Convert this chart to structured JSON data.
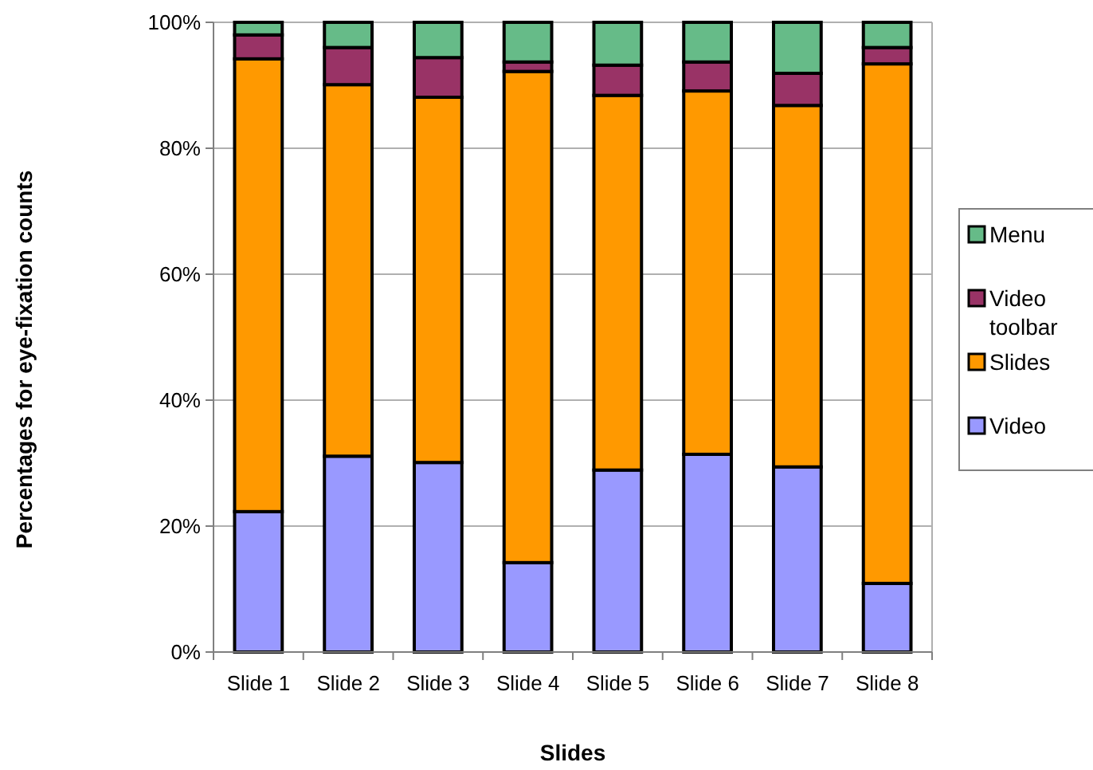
{
  "chart_data": {
    "type": "bar",
    "stacked": true,
    "xlabel": "Slides",
    "ylabel": "Percentages for eye-fixation counts",
    "categories": [
      "Slide 1",
      "Slide 2",
      "Slide 3",
      "Slide 4",
      "Slide 5",
      "Slide 6",
      "Slide 7",
      "Slide 8"
    ],
    "series": [
      {
        "name": "Video",
        "color": "#9999ff",
        "values": [
          22.3,
          31.1,
          30.1,
          14.2,
          28.9,
          31.4,
          29.4,
          10.9
        ]
      },
      {
        "name": "Slides",
        "color": "#ff9900",
        "values": [
          71.9,
          59,
          58,
          78,
          59.5,
          57.7,
          57.4,
          82.5
        ]
      },
      {
        "name": "Video toolbar",
        "color": "#993366",
        "values": [
          3.8,
          5.9,
          6.3,
          1.5,
          4.8,
          4.6,
          5.1,
          2.6
        ]
      },
      {
        "name": "Menu",
        "color": "#66bb88",
        "values": [
          2,
          4,
          5.6,
          6.3,
          6.8,
          6.3,
          8.1,
          4
        ]
      }
    ],
    "ylim": [
      0,
      100
    ],
    "yticks": [
      {
        "value": 0,
        "label": "0%"
      },
      {
        "value": 20,
        "label": "20%"
      },
      {
        "value": 40,
        "label": "40%"
      },
      {
        "value": 60,
        "label": "60%"
      },
      {
        "value": 80,
        "label": "80%"
      },
      {
        "value": 100,
        "label": "100%"
      }
    ],
    "grid": "y",
    "legend": "right"
  }
}
